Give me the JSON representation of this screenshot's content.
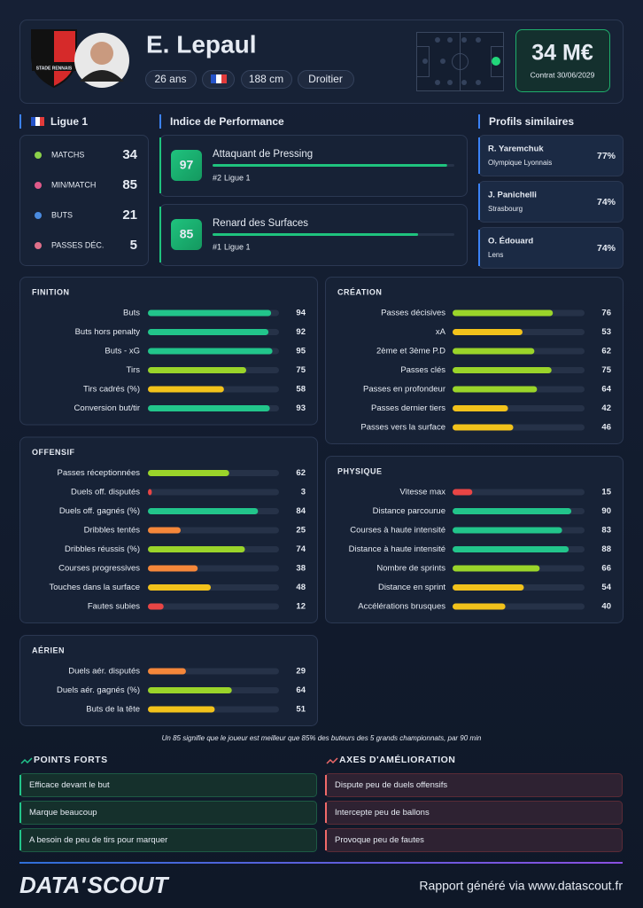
{
  "header": {
    "club": "STADE RENNAIS",
    "name": "E. Lepaul",
    "pills": [
      "26 ans",
      "188 cm",
      "Droitier"
    ],
    "value": "34 M€",
    "contract": "Contrat 30/06/2029"
  },
  "league": {
    "name": "Ligue 1",
    "stats": [
      {
        "label": "MATCHS",
        "value": 34
      },
      {
        "label": "MIN/MATCH",
        "value": 85
      },
      {
        "label": "BUTS",
        "value": 21
      },
      {
        "label": "PASSES DÉC.",
        "value": 5
      }
    ]
  },
  "performance": {
    "title": "Indice de Performance",
    "items": [
      {
        "score": 97,
        "role": "Attaquant de Pressing",
        "rank": "#2",
        "league": "Ligue 1"
      },
      {
        "score": 85,
        "role": "Renard des Surfaces",
        "rank": "#1",
        "league": "Ligue 1"
      }
    ]
  },
  "similar": {
    "title": "Profils similaires",
    "items": [
      {
        "name": "R. Yaremchuk",
        "club": "Olympique Lyonnais",
        "match": "77%"
      },
      {
        "name": "J. Panichelli",
        "club": "Strasbourg",
        "match": "74%"
      },
      {
        "name": "O. Édouard",
        "club": "Lens",
        "match": "74%"
      }
    ]
  },
  "columns": [
    [
      {
        "title": "FINITION",
        "metrics": [
          {
            "label": "Buts",
            "value": 94
          },
          {
            "label": "Buts hors penalty",
            "value": 92
          },
          {
            "label": "Buts - xG",
            "value": 95
          },
          {
            "label": "Tirs",
            "value": 75
          },
          {
            "label": "Tirs cadrés (%)",
            "value": 58
          },
          {
            "label": "Conversion but/tir",
            "value": 93
          }
        ]
      },
      {
        "title": "OFFENSIF",
        "metrics": [
          {
            "label": "Passes réceptionnées",
            "value": 62
          },
          {
            "label": "Duels off. disputés",
            "value": 3
          },
          {
            "label": "Duels off. gagnés (%)",
            "value": 84
          },
          {
            "label": "Dribbles tentés",
            "value": 25
          },
          {
            "label": "Dribbles réussis (%)",
            "value": 74
          },
          {
            "label": "Courses progressives",
            "value": 38
          },
          {
            "label": "Touches dans la surface",
            "value": 48
          },
          {
            "label": "Fautes subies",
            "value": 12
          }
        ]
      },
      {
        "title": "AÉRIEN",
        "metrics": [
          {
            "label": "Duels aér. disputés",
            "value": 29
          },
          {
            "label": "Duels aér. gagnés (%)",
            "value": 64
          },
          {
            "label": "Buts de la tête",
            "value": 51
          }
        ]
      }
    ],
    [
      {
        "title": "CRÉATION",
        "metrics": [
          {
            "label": "Passes décisives",
            "value": 76
          },
          {
            "label": "xA",
            "value": 53
          },
          {
            "label": "2ème et 3ème P.D",
            "value": 62
          },
          {
            "label": "Passes clés",
            "value": 75
          },
          {
            "label": "Passes en profondeur",
            "value": 64
          },
          {
            "label": "Passes dernier tiers",
            "value": 42
          },
          {
            "label": "Passes vers la surface",
            "value": 46
          }
        ]
      },
      {
        "title": "PHYSIQUE",
        "metrics": [
          {
            "label": "Vitesse max",
            "value": 15
          },
          {
            "label": "Distance parcourue",
            "value": 90
          },
          {
            "label": "Courses à haute intensité",
            "value": 83
          },
          {
            "label": "Distance à haute intensité",
            "value": 88
          },
          {
            "label": "Nombre de sprints",
            "value": 66
          },
          {
            "label": "Distance en sprint",
            "value": 54
          },
          {
            "label": "Accélérations brusques",
            "value": 40
          }
        ]
      }
    ]
  ],
  "note": "Un 85 signifie que le joueur est meilleur que 85% des buteurs des 5 grands championnats, par 90 min",
  "strengths": {
    "title": "POINTS FORTS",
    "items": [
      "Efficace devant le but",
      "Marque beaucoup",
      "A besoin de peu de tirs pour marquer"
    ]
  },
  "improvements": {
    "title": "AXES D'AMÉLIORATION",
    "items": [
      "Dispute peu de duels offensifs",
      "Intercepte peu de ballons",
      "Provoque peu de fautes"
    ]
  },
  "footer": {
    "brand": [
      "DATA'",
      "SCOUT"
    ],
    "generated": "Rapport généré via www.datascout.fr"
  }
}
